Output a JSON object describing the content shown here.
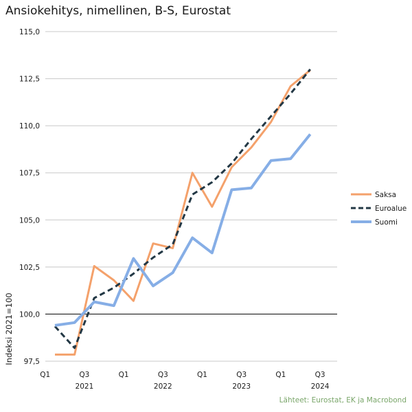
{
  "chart_data": {
    "type": "line",
    "title": "Ansiokehitys, nimellinen, B-S, Eurostat",
    "xlabel": "",
    "ylabel": "Indeksi 2021=100",
    "ylim": [
      97.5,
      115.0
    ],
    "yticks": [
      "97,5",
      "100,0",
      "102,5",
      "105,0",
      "107,5",
      "110,0",
      "112,5",
      "115,0"
    ],
    "ytick_values": [
      97.5,
      100.0,
      102.5,
      105.0,
      107.5,
      110.0,
      112.5,
      115.0
    ],
    "baseline": 100.0,
    "x": [
      "2021Q1",
      "2021Q2",
      "2021Q3",
      "2021Q4",
      "2022Q1",
      "2022Q2",
      "2022Q3",
      "2022Q4",
      "2023Q1",
      "2023Q2",
      "2023Q3",
      "2023Q4",
      "2024Q1",
      "2024Q2",
      "2024Q3"
    ],
    "quarter_ticks": [
      {
        "label": "Q1",
        "index": -0.5
      },
      {
        "label": "Q3",
        "index": 1.5
      },
      {
        "label": "Q1",
        "index": 3.5
      },
      {
        "label": "Q3",
        "index": 5.5
      },
      {
        "label": "Q1",
        "index": 7.5
      },
      {
        "label": "Q3",
        "index": 9.5
      },
      {
        "label": "Q1",
        "index": 11.5
      },
      {
        "label": "Q3",
        "index": 13.5
      }
    ],
    "year_ticks": [
      {
        "label": "2021",
        "index": 1.5
      },
      {
        "label": "2022",
        "index": 5.5
      },
      {
        "label": "2023",
        "index": 9.5
      },
      {
        "label": "2024",
        "index": 13.5
      }
    ],
    "legend_position": "right",
    "series": [
      {
        "name": "Saksa",
        "color": "#f4a16b",
        "dash": false,
        "values": [
          97.85,
          97.85,
          102.55,
          101.8,
          100.7,
          103.75,
          103.5,
          107.5,
          105.7,
          107.8,
          108.85,
          110.2,
          112.1,
          112.95,
          null
        ]
      },
      {
        "name": "Euroalue",
        "color": "#233845",
        "dash": true,
        "values": [
          99.35,
          98.2,
          100.85,
          101.4,
          102.15,
          103.0,
          103.7,
          106.35,
          107.0,
          108.0,
          109.3,
          110.5,
          111.7,
          113.0,
          null
        ]
      },
      {
        "name": "Suomi",
        "color": "#86aee6",
        "dash": false,
        "values": [
          99.4,
          99.55,
          100.65,
          100.45,
          102.95,
          101.5,
          102.2,
          104.05,
          103.25,
          106.6,
          106.7,
          108.15,
          108.25,
          109.55,
          null
        ]
      }
    ]
  },
  "footer": {
    "source": "Lähteet: Eurostat, EK ja Macrobond"
  }
}
